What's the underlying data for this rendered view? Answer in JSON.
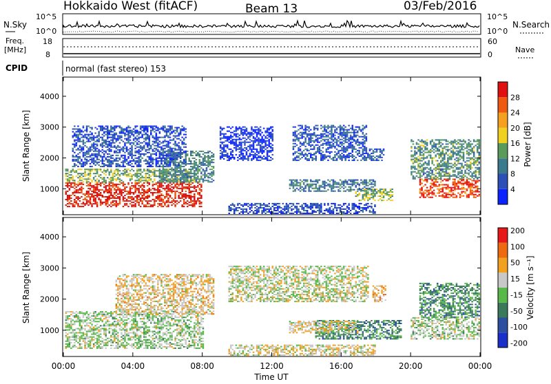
{
  "header": {
    "station": "Hokkaido West (fitACF)",
    "beam": "Beam 13",
    "date": "03/Feb/2016"
  },
  "top_panels": {
    "nsky_label": "N.Sky",
    "nsky_ticks": [
      "10^5",
      "10^0"
    ],
    "nsearch_label": "N.Search",
    "nsearch_ticks": [
      "10^5",
      "10^0"
    ],
    "freq_label_1": "Freq.",
    "freq_label_2": "[MHz]",
    "freq_ticks": [
      "18",
      "8"
    ],
    "nave_label": "Nave",
    "nave_ticks": [
      "60",
      "0"
    ],
    "cpid_label": "CPID",
    "cpid_text": "normal (fast stereo) 153"
  },
  "chart_data": [
    {
      "type": "heatmap",
      "name": "power",
      "ylabel": "Slant Range [km]",
      "ylim": [
        180,
        4600
      ],
      "yticks": [
        "1000",
        "2000",
        "3000",
        "4000"
      ],
      "xlim": [
        0,
        24
      ],
      "colorbar": {
        "label": "Power [dB]",
        "ticks": [
          "4",
          "8",
          "12",
          "16",
          "20",
          "24",
          "28"
        ],
        "colors": [
          "#0a23ff",
          "#2c4fb8",
          "#3a7a8c",
          "#5a9a5a",
          "#f0d020",
          "#f5a020",
          "#ee5a10",
          "#e01010"
        ]
      },
      "regions": [
        {
          "t0": 0.1,
          "t1": 7.9,
          "r0": 400,
          "r1": 1200,
          "level": 0.92
        },
        {
          "t0": 0.1,
          "t1": 7.5,
          "r0": 1200,
          "r1": 1650,
          "level": 0.45
        },
        {
          "t0": 5.5,
          "t1": 8.6,
          "r0": 1200,
          "r1": 2200,
          "level": 0.35
        },
        {
          "t0": 0.5,
          "t1": 7.0,
          "r0": 1700,
          "r1": 3050,
          "level": 0.18
        },
        {
          "t0": 9.0,
          "t1": 12.0,
          "r0": 1900,
          "r1": 3000,
          "level": 0.1
        },
        {
          "t0": 13.2,
          "t1": 17.5,
          "r0": 1900,
          "r1": 3050,
          "level": 0.2
        },
        {
          "t0": 16.8,
          "t1": 19.0,
          "r0": 600,
          "r1": 1000,
          "level": 0.48
        },
        {
          "t0": 13.0,
          "t1": 18.0,
          "r0": 900,
          "r1": 1300,
          "level": 0.3
        },
        {
          "t0": 9.5,
          "t1": 18.0,
          "r0": 180,
          "r1": 500,
          "level": 0.15
        },
        {
          "t0": 20.5,
          "t1": 24.0,
          "r0": 700,
          "r1": 1300,
          "level": 0.85
        },
        {
          "t0": 20.0,
          "t1": 24.0,
          "r0": 1300,
          "r1": 2600,
          "level": 0.38
        },
        {
          "t0": 17.5,
          "t1": 18.5,
          "r0": 1900,
          "r1": 2300,
          "level": 0.22
        }
      ]
    },
    {
      "type": "heatmap",
      "name": "velocity",
      "ylabel": "Slant Range [km]",
      "ylim": [
        180,
        4600
      ],
      "yticks": [
        "1000",
        "2000",
        "3000",
        "4000"
      ],
      "xlim": [
        0,
        24
      ],
      "colorbar": {
        "label": "Velocity [m s⁻¹]",
        "ticks": [
          "200",
          "100",
          "50",
          "15",
          "-15",
          "-50",
          "-100",
          "-200"
        ],
        "colors": [
          "#1a2ec8",
          "#2d4fa0",
          "#3a7a5a",
          "#58b84a",
          "#c8c8c8",
          "#f2a020",
          "#ee6a10",
          "#e81818"
        ]
      },
      "regions": [
        {
          "t0": 0.1,
          "t1": 8.0,
          "r0": 400,
          "r1": 1600,
          "level": 0.5
        },
        {
          "t0": 3.0,
          "t1": 8.6,
          "r0": 1500,
          "r1": 2800,
          "level": 0.62
        },
        {
          "t0": 14.5,
          "t1": 19.5,
          "r0": 700,
          "r1": 1300,
          "level": 0.32
        },
        {
          "t0": 13.0,
          "t1": 17.0,
          "r0": 900,
          "r1": 1300,
          "level": 0.6
        },
        {
          "t0": 17.8,
          "t1": 18.6,
          "r0": 1900,
          "r1": 2400,
          "level": 0.68
        },
        {
          "t0": 20.0,
          "t1": 24.0,
          "r0": 700,
          "r1": 1400,
          "level": 0.5
        },
        {
          "t0": 20.5,
          "t1": 24.0,
          "r0": 1400,
          "r1": 2500,
          "level": 0.35
        },
        {
          "t0": 9.5,
          "t1": 17.5,
          "r0": 1900,
          "r1": 3050,
          "level": 0.55
        },
        {
          "t0": 9.5,
          "t1": 18.0,
          "r0": 180,
          "r1": 500,
          "level": 0.6
        }
      ]
    }
  ],
  "x_axis": {
    "label": "Time UT",
    "ticks": [
      "00:00",
      "04:00",
      "08:00",
      "12:00",
      "16:00",
      "20:00",
      "00:00"
    ]
  }
}
